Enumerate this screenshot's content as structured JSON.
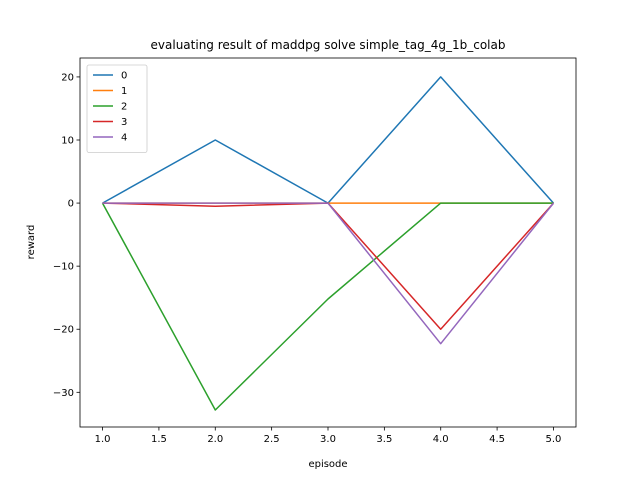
{
  "chart_data": {
    "type": "line",
    "title": "evaluating result of maddpg solve simple_tag_4g_1b_colab",
    "xlabel": "episode",
    "ylabel": "reward",
    "xlim": [
      0.8,
      5.2
    ],
    "ylim": [
      -35.5,
      23.0
    ],
    "xticks": [
      1.0,
      1.5,
      2.0,
      2.5,
      3.0,
      3.5,
      4.0,
      4.5,
      5.0
    ],
    "yticks": [
      20,
      10,
      0,
      -10,
      -20,
      -30
    ],
    "xtick_labels": [
      "1.0",
      "1.5",
      "2.0",
      "2.5",
      "3.0",
      "3.5",
      "4.0",
      "4.5",
      "5.0"
    ],
    "ytick_labels": [
      "20",
      "10",
      "0",
      "−10",
      "−20",
      "−30"
    ],
    "x": [
      1,
      2,
      3,
      4,
      5
    ],
    "grid": false,
    "legend_position": "top-left",
    "series": [
      {
        "name": "0",
        "color": "#1f77b4",
        "values": [
          0,
          10,
          0,
          20,
          0
        ]
      },
      {
        "name": "1",
        "color": "#ff7f0e",
        "values": [
          0,
          0,
          0,
          0,
          0
        ]
      },
      {
        "name": "2",
        "color": "#2ca02c",
        "values": [
          0,
          -32.8,
          -15.2,
          0,
          0
        ]
      },
      {
        "name": "3",
        "color": "#d62728",
        "values": [
          0,
          -0.5,
          0,
          -20,
          0
        ]
      },
      {
        "name": "4",
        "color": "#9467bd",
        "values": [
          0,
          0,
          0,
          -22.3,
          0
        ]
      }
    ]
  }
}
